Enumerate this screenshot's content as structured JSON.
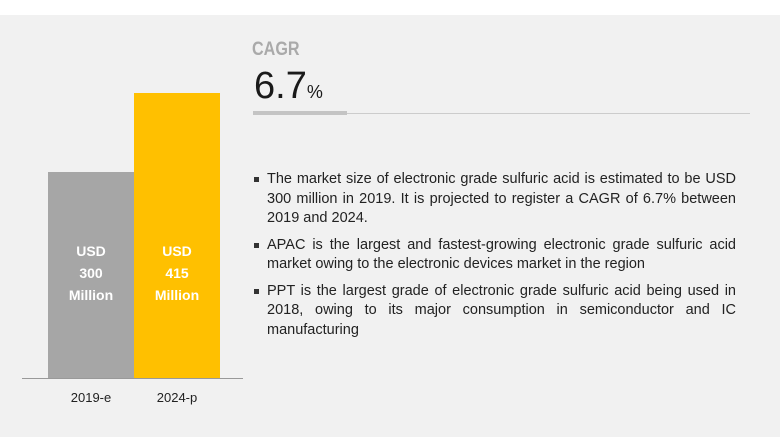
{
  "chart_data": {
    "type": "bar",
    "categories": [
      "2019-e",
      "2024-p"
    ],
    "values": [
      300,
      415
    ],
    "unit": "USD Million",
    "data_labels": [
      [
        "USD",
        "300",
        "Million"
      ],
      [
        "USD",
        "415",
        "Million"
      ]
    ],
    "colors": [
      "#a6a6a6",
      "#ffc000"
    ],
    "ylim": [
      0,
      415
    ]
  },
  "cagr": {
    "label": "CAGR",
    "value": "6.7",
    "unit": "%"
  },
  "bullets": [
    "The market size of electronic grade sulfuric acid is estimated to be USD 300 million in 2019. It is projected to register a CAGR of 6.7% between 2019 and 2024.",
    "APAC is the largest and fastest-growing electronic grade sulfuric acid market owing to the electronic devices market in the region",
    "PPT is the largest grade of electronic grade sulfuric acid being used in 2018, owing to its major consumption in semiconductor and IC manufacturing"
  ]
}
